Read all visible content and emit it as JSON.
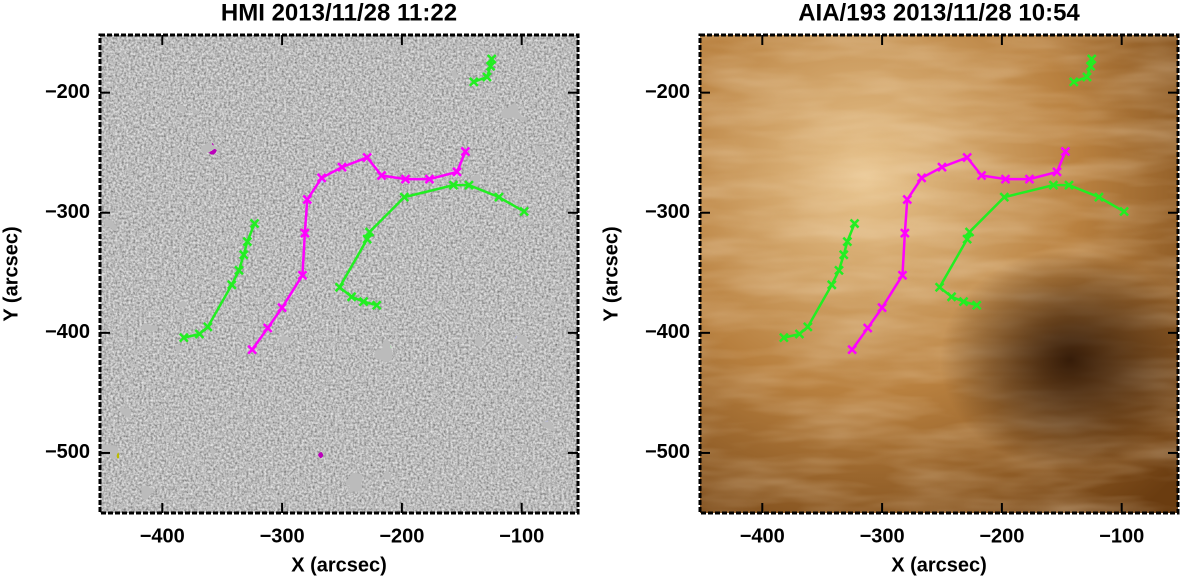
{
  "chart_data": [
    {
      "type": "line",
      "title": "HMI 2013/11/28 11:22",
      "x_label": "X (arcsec)",
      "y_label": "Y (arcsec)",
      "xlim": [
        -452,
        -53
      ],
      "ylim": [
        -550,
        -152
      ],
      "xticks": [
        {
          "value": -400,
          "label": "−400"
        },
        {
          "value": -300,
          "label": "−300"
        },
        {
          "value": -200,
          "label": "−200"
        },
        {
          "value": -100,
          "label": "−100"
        }
      ],
      "yticks": [
        {
          "value": -500,
          "label": "−500"
        },
        {
          "value": -400,
          "label": "−400"
        },
        {
          "value": -300,
          "label": "−300"
        },
        {
          "value": -200,
          "label": "−200"
        }
      ],
      "marker": "x",
      "series": [
        {
          "color": "#ff00ff",
          "x": [
            -325,
            -312,
            -300,
            -283,
            -281,
            -279,
            -267,
            -250,
            -229,
            -217,
            -197,
            -177,
            -154,
            -147
          ],
          "values": [
            -414,
            -396,
            -379,
            -352,
            -317,
            -289,
            -271,
            -262,
            -254,
            -269,
            -272,
            -272,
            -266,
            -249
          ]
        },
        {
          "color": "#22ee22",
          "x": [
            -382,
            -369,
            -362,
            -342,
            -336,
            -332,
            -329,
            -323
          ],
          "values": [
            -404,
            -401,
            -395,
            -360,
            -348,
            -335,
            -324,
            -309
          ]
        },
        {
          "color": "#22ee22",
          "x": [
            -221,
            -232,
            -242,
            -252,
            -229,
            -227,
            -198,
            -157,
            -144,
            -119,
            -98
          ],
          "values": [
            -377,
            -374,
            -370,
            -362,
            -322,
            -316,
            -287,
            -277,
            -277,
            -287,
            -299
          ]
        },
        {
          "color": "#22ee22",
          "x": [
            -140,
            -129,
            -126,
            -125
          ],
          "values": [
            -191,
            -187,
            -178,
            -172
          ]
        }
      ]
    },
    {
      "type": "line",
      "title": "AIA/193 2013/11/28 10:54",
      "x_label": "X (arcsec)",
      "y_label": "Y (arcsec)",
      "xlim": [
        -452,
        -53
      ],
      "ylim": [
        -550,
        -152
      ],
      "xticks": [
        {
          "value": -400,
          "label": "−400"
        },
        {
          "value": -300,
          "label": "−300"
        },
        {
          "value": -200,
          "label": "−200"
        },
        {
          "value": -100,
          "label": "−100"
        }
      ],
      "yticks": [
        {
          "value": -500,
          "label": "−500"
        },
        {
          "value": -400,
          "label": "−400"
        },
        {
          "value": -300,
          "label": "−300"
        },
        {
          "value": -200,
          "label": "−200"
        }
      ],
      "marker": "x",
      "series": [
        {
          "color": "#ff00ff",
          "x": [
            -325,
            -312,
            -300,
            -283,
            -281,
            -279,
            -267,
            -250,
            -229,
            -217,
            -197,
            -177,
            -154,
            -147
          ],
          "values": [
            -414,
            -396,
            -379,
            -352,
            -317,
            -289,
            -271,
            -262,
            -254,
            -269,
            -272,
            -272,
            -266,
            -249
          ]
        },
        {
          "color": "#22ee22",
          "x": [
            -382,
            -369,
            -362,
            -342,
            -336,
            -332,
            -329,
            -323
          ],
          "values": [
            -404,
            -401,
            -395,
            -360,
            -348,
            -335,
            -324,
            -309
          ]
        },
        {
          "color": "#22ee22",
          "x": [
            -221,
            -232,
            -242,
            -252,
            -229,
            -227,
            -198,
            -157,
            -144,
            -119,
            -98
          ],
          "values": [
            -377,
            -374,
            -370,
            -362,
            -322,
            -316,
            -287,
            -277,
            -277,
            -287,
            -299
          ]
        },
        {
          "color": "#22ee22",
          "x": [
            -140,
            -129,
            -126,
            -125
          ],
          "values": [
            -191,
            -187,
            -178,
            -172
          ]
        }
      ]
    }
  ]
}
